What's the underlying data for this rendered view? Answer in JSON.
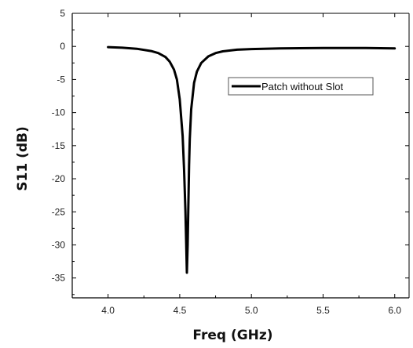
{
  "chart_data": {
    "type": "line",
    "xlabel": "Freq (GHz)",
    "ylabel": "S11 (dB)",
    "xlim": [
      3.75,
      6.1
    ],
    "ylim": [
      -38,
      5
    ],
    "x_ticks": [
      4.0,
      4.5,
      5.0,
      5.5,
      6.0
    ],
    "x_tick_labels": [
      "4.0",
      "4.5",
      "5.0",
      "5.5",
      "6.0"
    ],
    "y_ticks": [
      5,
      0,
      -5,
      -10,
      -15,
      -20,
      -25,
      -30,
      -35
    ],
    "y_tick_labels": [
      "5",
      "0",
      "-5",
      "-10",
      "-15",
      "-20",
      "-25",
      "-30",
      "-35"
    ],
    "grid": false,
    "legend_position": "upper-right",
    "series": [
      {
        "name": "Patch without Slot",
        "color": "#000000",
        "x": [
          4.0,
          4.1,
          4.2,
          4.3,
          4.35,
          4.4,
          4.43,
          4.46,
          4.48,
          4.5,
          4.52,
          4.53,
          4.54,
          4.545,
          4.55,
          4.555,
          4.56,
          4.565,
          4.57,
          4.58,
          4.6,
          4.62,
          4.65,
          4.7,
          4.75,
          4.8,
          4.9,
          5.0,
          5.2,
          5.5,
          5.8,
          6.0
        ],
        "y": [
          -0.1,
          -0.2,
          -0.35,
          -0.7,
          -1.0,
          -1.6,
          -2.3,
          -3.5,
          -5.0,
          -8.0,
          -13.5,
          -18.5,
          -25.0,
          -29.5,
          -34.2,
          -30.0,
          -24.0,
          -18.0,
          -14.0,
          -9.5,
          -5.5,
          -3.8,
          -2.5,
          -1.5,
          -1.0,
          -0.75,
          -0.5,
          -0.4,
          -0.3,
          -0.25,
          -0.25,
          -0.3
        ]
      }
    ]
  }
}
